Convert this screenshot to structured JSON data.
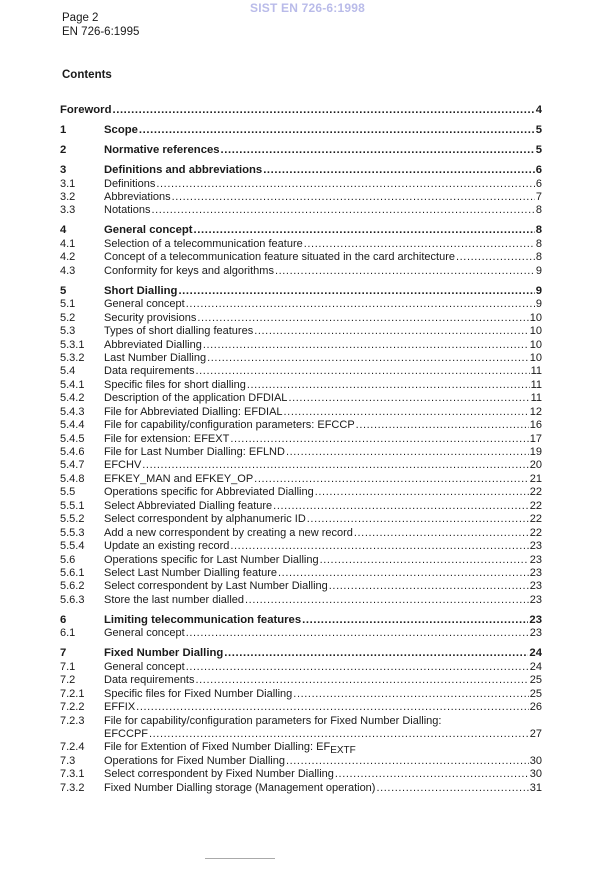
{
  "watermark": "SIST EN 726-6:1998",
  "header": {
    "page": "Page 2",
    "standard": "EN 726-6:1995"
  },
  "contents_title": "Contents",
  "toc": [
    {
      "num": "",
      "title": "Foreword",
      "page": "4",
      "major": true
    },
    {
      "num": "1",
      "title": "Scope",
      "page": "5",
      "major": true
    },
    {
      "num": "2",
      "title": "Normative references",
      "page": "5",
      "major": true
    },
    {
      "num": "3",
      "title": "Definitions and abbreviations",
      "page": "6",
      "major": true
    },
    {
      "num": "3.1",
      "title": "Definitions",
      "page": "6"
    },
    {
      "num": "3.2",
      "title": "Abbreviations",
      "page": "7"
    },
    {
      "num": "3.3",
      "title": "Notations",
      "page": "8"
    },
    {
      "num": "4",
      "title": "General concept",
      "page": "8",
      "major": true
    },
    {
      "num": "4.1",
      "title": "Selection of a telecommunication feature",
      "page": "8"
    },
    {
      "num": "4.2",
      "title": "Concept of a telecommunication feature situated in the card architecture",
      "page": "8"
    },
    {
      "num": "4.3",
      "title": "Conformity for keys and algorithms",
      "page": "9"
    },
    {
      "num": "5",
      "title": "Short Dialling",
      "page": "9",
      "major": true
    },
    {
      "num": "5.1",
      "title": "General concept",
      "page": "9"
    },
    {
      "num": "5.2",
      "title": "Security provisions",
      "page": "10"
    },
    {
      "num": "5.3",
      "title": "Types of short dialling features",
      "page": "10"
    },
    {
      "num": "5.3.1",
      "title": "Abbreviated Dialling",
      "page": "10"
    },
    {
      "num": "5.3.2",
      "title": "Last Number Dialling",
      "page": "10"
    },
    {
      "num": "5.4",
      "title": "Data requirements",
      "page": "11"
    },
    {
      "num": "5.4.1",
      "title": "Specific files for short dialling",
      "page": "11"
    },
    {
      "num": "5.4.2",
      "title": "Description of the application DFDIAL",
      "page": "11"
    },
    {
      "num": "5.4.3",
      "title": "File for Abbreviated Dialling: EFDIAL",
      "page": "12"
    },
    {
      "num": "5.4.4",
      "title": "File for capability/configuration parameters: EFCCP",
      "page": "16"
    },
    {
      "num": "5.4.5",
      "title": "File for extension: EFEXT",
      "page": "17"
    },
    {
      "num": "5.4.6",
      "title": "File for Last Number Dialling: EFLND",
      "page": "19"
    },
    {
      "num": "5.4.7",
      "title": "EFCHV",
      "page": "20"
    },
    {
      "num": "5.4.8",
      "title": "EFKEY_MAN and EFKEY_OP",
      "page": "21"
    },
    {
      "num": "5.5",
      "title": "Operations specific for Abbreviated Dialling",
      "page": "22"
    },
    {
      "num": "5.5.1",
      "title": "Select Abbreviated Dialling feature",
      "page": "22"
    },
    {
      "num": "5.5.2",
      "title": "Select correspondent by alphanumeric ID",
      "page": "22"
    },
    {
      "num": "5.5.3",
      "title": "Add a new correspondent by creating a new record",
      "page": "22"
    },
    {
      "num": "5.5.4",
      "title": "Update an existing record",
      "page": "23"
    },
    {
      "num": "5.6",
      "title": "Operations specific for Last Number Dialling",
      "page": "23"
    },
    {
      "num": "5.6.1",
      "title": "Select Last Number Dialling feature",
      "page": "23"
    },
    {
      "num": "5.6.2",
      "title": "Select correspondent by Last Number Dialling",
      "page": "23"
    },
    {
      "num": "5.6.3",
      "title": "Store the last number dialled",
      "page": "23"
    },
    {
      "num": "6",
      "title": "Limiting telecommunication features",
      "page": "23",
      "major": true
    },
    {
      "num": "6.1",
      "title": "General concept",
      "page": "23"
    },
    {
      "num": "7",
      "title": "Fixed Number Dialling",
      "page": "24",
      "major": true
    },
    {
      "num": "7.1",
      "title": "General concept",
      "page": "24"
    },
    {
      "num": "7.2",
      "title": "Data requirements",
      "page": "25"
    },
    {
      "num": "7.2.1",
      "title": "Specific files for Fixed Number Dialling",
      "page": "25"
    },
    {
      "num": "7.2.2",
      "title": "EFFIX",
      "page": "26"
    },
    {
      "num": "7.2.3",
      "title": "File for capability/configuration parameters for Fixed Number Dialling:",
      "page": "",
      "noleader": true
    },
    {
      "num": "",
      "title": "EFCCPF",
      "page": "27",
      "indent": true
    },
    {
      "num": "7.2.4",
      "title": "File for Extention of Fixed Number Dialling: EF",
      "subscript": "EXTF",
      "page": "",
      "noleader": true
    },
    {
      "num": "7.3",
      "title": "Operations for Fixed Number Dialling",
      "page": "30"
    },
    {
      "num": "7.3.1",
      "title": "Select correspondent by Fixed Number Dialling",
      "page": "30"
    },
    {
      "num": "7.3.2",
      "title": "Fixed Number Dialling storage (Management operation)",
      "page": "31"
    }
  ]
}
